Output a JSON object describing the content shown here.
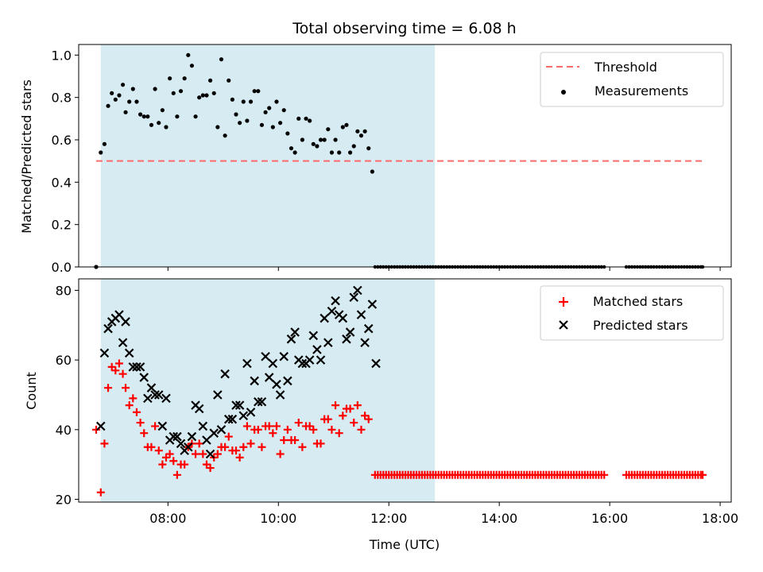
{
  "title": "Total observing time = 6.08 h",
  "colors": {
    "shade": "#add8e6",
    "threshold": "#ff6b6b",
    "measurement": "#000000",
    "matched": "#ff0000",
    "predicted": "#000000"
  },
  "chart_data": [
    {
      "type": "scatter",
      "ylabel": "Matched/Predicted stars",
      "xlim": [
        "06:23",
        "18:12"
      ],
      "ylim": [
        0,
        1.05
      ],
      "xticks": [
        "08:00",
        "10:00",
        "12:00",
        "14:00",
        "16:00",
        "18:00"
      ],
      "yticks": [
        "0.0",
        "0.2",
        "0.4",
        "0.6",
        "0.8",
        "1.0"
      ],
      "shaded_span": [
        "06:47",
        "12:50"
      ],
      "legend": "top-right",
      "legend_labels": {
        "threshold": "Threshold",
        "measurements": "Measurements"
      },
      "threshold": {
        "value": 0.5,
        "x": [
          "06:42",
          "17:41"
        ]
      },
      "measurements": [
        [
          "06:42",
          0.0
        ],
        [
          "06:47",
          0.54
        ],
        [
          "06:51",
          0.58
        ],
        [
          "06:55",
          0.76
        ],
        [
          "06:59",
          0.82
        ],
        [
          "07:03",
          0.79
        ],
        [
          "07:07",
          0.81
        ],
        [
          "07:11",
          0.86
        ],
        [
          "07:14",
          0.73
        ],
        [
          "07:18",
          0.78
        ],
        [
          "07:22",
          0.84
        ],
        [
          "07:26",
          0.78
        ],
        [
          "07:30",
          0.72
        ],
        [
          "07:34",
          0.71
        ],
        [
          "07:38",
          0.71
        ],
        [
          "07:42",
          0.67
        ],
        [
          "07:46",
          0.84
        ],
        [
          "07:50",
          0.68
        ],
        [
          "07:54",
          0.74
        ],
        [
          "07:58",
          0.66
        ],
        [
          "08:02",
          0.89
        ],
        [
          "08:06",
          0.82
        ],
        [
          "08:10",
          0.71
        ],
        [
          "08:14",
          0.83
        ],
        [
          "08:18",
          0.89
        ],
        [
          "08:22",
          1.0
        ],
        [
          "08:26",
          0.95
        ],
        [
          "08:30",
          0.71
        ],
        [
          "08:34",
          0.8
        ],
        [
          "08:38",
          0.81
        ],
        [
          "08:42",
          0.81
        ],
        [
          "08:46",
          0.88
        ],
        [
          "08:50",
          0.82
        ],
        [
          "08:54",
          0.66
        ],
        [
          "08:58",
          0.98
        ],
        [
          "09:02",
          0.62
        ],
        [
          "09:06",
          0.88
        ],
        [
          "09:10",
          0.79
        ],
        [
          "09:14",
          0.72
        ],
        [
          "09:18",
          0.68
        ],
        [
          "09:22",
          0.78
        ],
        [
          "09:26",
          0.69
        ],
        [
          "09:30",
          0.78
        ],
        [
          "09:34",
          0.83
        ],
        [
          "09:38",
          0.83
        ],
        [
          "09:42",
          0.67
        ],
        [
          "09:46",
          0.73
        ],
        [
          "09:50",
          0.75
        ],
        [
          "09:54",
          0.66
        ],
        [
          "09:58",
          0.78
        ],
        [
          "10:02",
          0.68
        ],
        [
          "10:06",
          0.74
        ],
        [
          "10:10",
          0.63
        ],
        [
          "10:14",
          0.56
        ],
        [
          "10:18",
          0.54
        ],
        [
          "10:22",
          0.7
        ],
        [
          "10:26",
          0.6
        ],
        [
          "10:30",
          0.7
        ],
        [
          "10:34",
          0.69
        ],
        [
          "10:38",
          0.58
        ],
        [
          "10:42",
          0.57
        ],
        [
          "10:46",
          0.6
        ],
        [
          "10:50",
          0.6
        ],
        [
          "10:54",
          0.65
        ],
        [
          "10:58",
          0.54
        ],
        [
          "11:02",
          0.6
        ],
        [
          "11:06",
          0.54
        ],
        [
          "11:10",
          0.66
        ],
        [
          "11:14",
          0.67
        ],
        [
          "11:18",
          0.54
        ],
        [
          "11:22",
          0.57
        ],
        [
          "11:26",
          0.64
        ],
        [
          "11:30",
          0.62
        ],
        [
          "11:34",
          0.64
        ],
        [
          "11:38",
          0.56
        ],
        [
          "11:42",
          0.45
        ]
      ],
      "measurements_tail": {
        "value": 0.0,
        "x": [
          "11:45",
          "11:48",
          "11:51",
          "11:54",
          "11:57",
          "12:00",
          "12:03",
          "12:06",
          "12:09",
          "12:12",
          "12:15",
          "12:18",
          "12:21",
          "12:24",
          "12:27",
          "12:30",
          "12:33",
          "12:36",
          "12:39",
          "12:42",
          "12:45",
          "12:48",
          "12:51",
          "12:54",
          "12:57",
          "13:00",
          "13:03",
          "13:06",
          "13:09",
          "13:12",
          "13:15",
          "13:18",
          "13:21",
          "13:24",
          "13:27",
          "13:30",
          "13:33",
          "13:36",
          "13:39",
          "13:42",
          "13:45",
          "13:48",
          "13:51",
          "13:54",
          "13:57",
          "14:00",
          "14:03",
          "14:06",
          "14:09",
          "14:12",
          "14:15",
          "14:18",
          "14:21",
          "14:24",
          "14:27",
          "14:30",
          "14:33",
          "14:36",
          "14:39",
          "14:42",
          "14:45",
          "14:48",
          "14:51",
          "14:54",
          "14:57",
          "15:00",
          "15:03",
          "15:06",
          "15:09",
          "15:12",
          "15:15",
          "15:18",
          "15:21",
          "15:24",
          "15:27",
          "15:30",
          "15:33",
          "15:36",
          "15:39",
          "15:42",
          "15:45",
          "15:48",
          "15:51",
          "15:54",
          "16:18",
          "16:21",
          "16:24",
          "16:27",
          "16:30",
          "16:33",
          "16:36",
          "16:39",
          "16:42",
          "16:45",
          "16:48",
          "16:51",
          "16:54",
          "16:57",
          "17:00",
          "17:03",
          "17:06",
          "17:09",
          "17:12",
          "17:15",
          "17:18",
          "17:21",
          "17:24",
          "17:27",
          "17:30",
          "17:33",
          "17:36",
          "17:39",
          "17:41"
        ]
      }
    },
    {
      "type": "scatter",
      "xlabel": "Time (UTC)",
      "ylabel": "Count",
      "xlim": [
        "06:23",
        "18:12"
      ],
      "ylim": [
        19.2,
        83.3
      ],
      "xticks": [
        "08:00",
        "10:00",
        "12:00",
        "14:00",
        "16:00",
        "18:00"
      ],
      "yticks": [
        "20",
        "40",
        "60",
        "80"
      ],
      "shaded_span": [
        "06:47",
        "12:50"
      ],
      "legend": "top-right",
      "legend_labels": {
        "matched": "Matched stars",
        "predicted": "Predicted stars"
      },
      "predicted": [
        [
          "06:47",
          41
        ],
        [
          "06:51",
          62
        ],
        [
          "06:55",
          69
        ],
        [
          "06:59",
          71
        ],
        [
          "07:03",
          72
        ],
        [
          "07:07",
          73
        ],
        [
          "07:11",
          65
        ],
        [
          "07:14",
          71
        ],
        [
          "07:18",
          62
        ],
        [
          "07:22",
          58
        ],
        [
          "07:26",
          58
        ],
        [
          "07:30",
          58
        ],
        [
          "07:34",
          55
        ],
        [
          "07:38",
          49
        ],
        [
          "07:42",
          52
        ],
        [
          "07:46",
          50
        ],
        [
          "07:50",
          50
        ],
        [
          "07:54",
          41
        ],
        [
          "07:58",
          49
        ],
        [
          "08:02",
          37
        ],
        [
          "08:06",
          38
        ],
        [
          "08:10",
          38
        ],
        [
          "08:14",
          36
        ],
        [
          "08:18",
          34
        ],
        [
          "08:22",
          35
        ],
        [
          "08:26",
          38
        ],
        [
          "08:30",
          47
        ],
        [
          "08:34",
          46
        ],
        [
          "08:38",
          41
        ],
        [
          "08:42",
          37
        ],
        [
          "08:46",
          33
        ],
        [
          "08:50",
          39
        ],
        [
          "08:54",
          50
        ],
        [
          "08:58",
          40
        ],
        [
          "09:02",
          56
        ],
        [
          "09:06",
          43
        ],
        [
          "09:10",
          43
        ],
        [
          "09:14",
          47
        ],
        [
          "09:18",
          47
        ],
        [
          "09:22",
          44
        ],
        [
          "09:26",
          59
        ],
        [
          "09:30",
          45
        ],
        [
          "09:34",
          54
        ],
        [
          "09:38",
          48
        ],
        [
          "09:42",
          48
        ],
        [
          "09:46",
          61
        ],
        [
          "09:50",
          55
        ],
        [
          "09:54",
          59
        ],
        [
          "09:58",
          53
        ],
        [
          "10:02",
          50
        ],
        [
          "10:06",
          61
        ],
        [
          "10:10",
          54
        ],
        [
          "10:14",
          66
        ],
        [
          "10:18",
          68
        ],
        [
          "10:22",
          60
        ],
        [
          "10:26",
          59
        ],
        [
          "10:30",
          59
        ],
        [
          "10:34",
          60
        ],
        [
          "10:38",
          67
        ],
        [
          "10:42",
          63
        ],
        [
          "10:46",
          60
        ],
        [
          "10:50",
          72
        ],
        [
          "10:54",
          65
        ],
        [
          "10:58",
          74
        ],
        [
          "11:02",
          77
        ],
        [
          "11:06",
          73
        ],
        [
          "11:10",
          72
        ],
        [
          "11:14",
          66
        ],
        [
          "11:18",
          68
        ],
        [
          "11:22",
          78
        ],
        [
          "11:26",
          80
        ],
        [
          "11:30",
          73
        ],
        [
          "11:34",
          65
        ],
        [
          "11:38",
          69
        ],
        [
          "11:42",
          76
        ],
        [
          "11:46",
          59
        ]
      ],
      "matched": [
        [
          "06:42",
          40
        ],
        [
          "06:47",
          22
        ],
        [
          "06:51",
          36
        ],
        [
          "06:55",
          52
        ],
        [
          "06:59",
          58
        ],
        [
          "07:03",
          57
        ],
        [
          "07:07",
          59
        ],
        [
          "07:11",
          56
        ],
        [
          "07:14",
          52
        ],
        [
          "07:18",
          47
        ],
        [
          "07:22",
          49
        ],
        [
          "07:26",
          45
        ],
        [
          "07:30",
          42
        ],
        [
          "07:34",
          39
        ],
        [
          "07:38",
          35
        ],
        [
          "07:42",
          35
        ],
        [
          "07:46",
          41
        ],
        [
          "07:50",
          34
        ],
        [
          "07:54",
          30
        ],
        [
          "07:58",
          32
        ],
        [
          "08:02",
          33
        ],
        [
          "08:06",
          31
        ],
        [
          "08:10",
          27
        ],
        [
          "08:14",
          30
        ],
        [
          "08:18",
          30
        ],
        [
          "08:22",
          35
        ],
        [
          "08:26",
          36
        ],
        [
          "08:30",
          33
        ],
        [
          "08:34",
          36
        ],
        [
          "08:38",
          33
        ],
        [
          "08:42",
          30
        ],
        [
          "08:46",
          29
        ],
        [
          "08:50",
          32
        ],
        [
          "08:54",
          33
        ],
        [
          "08:58",
          35
        ],
        [
          "09:02",
          35
        ],
        [
          "09:06",
          38
        ],
        [
          "09:10",
          34
        ],
        [
          "09:14",
          34
        ],
        [
          "09:18",
          32
        ],
        [
          "09:22",
          35
        ],
        [
          "09:26",
          41
        ],
        [
          "09:30",
          36
        ],
        [
          "09:34",
          40
        ],
        [
          "09:38",
          40
        ],
        [
          "09:42",
          35
        ],
        [
          "09:46",
          41
        ],
        [
          "09:50",
          41
        ],
        [
          "09:54",
          39
        ],
        [
          "09:58",
          41
        ],
        [
          "10:02",
          33
        ],
        [
          "10:06",
          37
        ],
        [
          "10:10",
          40
        ],
        [
          "10:14",
          37
        ],
        [
          "10:18",
          37
        ],
        [
          "10:22",
          42
        ],
        [
          "10:26",
          35
        ],
        [
          "10:30",
          41
        ],
        [
          "10:34",
          41
        ],
        [
          "10:38",
          40
        ],
        [
          "10:42",
          36
        ],
        [
          "10:46",
          36
        ],
        [
          "10:50",
          43
        ],
        [
          "10:54",
          43
        ],
        [
          "10:58",
          40
        ],
        [
          "11:02",
          47
        ],
        [
          "11:06",
          39
        ],
        [
          "11:10",
          44
        ],
        [
          "11:14",
          46
        ],
        [
          "11:18",
          46
        ],
        [
          "11:22",
          42
        ],
        [
          "11:26",
          47
        ],
        [
          "11:30",
          40
        ],
        [
          "11:34",
          44
        ],
        [
          "11:38",
          43
        ]
      ],
      "matched_tail": {
        "value": 27,
        "x": [
          "11:45",
          "11:48",
          "11:51",
          "11:54",
          "11:57",
          "12:00",
          "12:03",
          "12:06",
          "12:09",
          "12:12",
          "12:15",
          "12:18",
          "12:21",
          "12:24",
          "12:27",
          "12:30",
          "12:33",
          "12:36",
          "12:39",
          "12:42",
          "12:45",
          "12:48",
          "12:51",
          "12:54",
          "12:57",
          "13:00",
          "13:03",
          "13:06",
          "13:09",
          "13:12",
          "13:15",
          "13:18",
          "13:21",
          "13:24",
          "13:27",
          "13:30",
          "13:33",
          "13:36",
          "13:39",
          "13:42",
          "13:45",
          "13:48",
          "13:51",
          "13:54",
          "13:57",
          "14:00",
          "14:03",
          "14:06",
          "14:09",
          "14:12",
          "14:15",
          "14:18",
          "14:21",
          "14:24",
          "14:27",
          "14:30",
          "14:33",
          "14:36",
          "14:39",
          "14:42",
          "14:45",
          "14:48",
          "14:51",
          "14:54",
          "14:57",
          "15:00",
          "15:03",
          "15:06",
          "15:09",
          "15:12",
          "15:15",
          "15:18",
          "15:21",
          "15:24",
          "15:27",
          "15:30",
          "15:33",
          "15:36",
          "15:39",
          "15:42",
          "15:45",
          "15:48",
          "15:51",
          "15:54",
          "16:18",
          "16:21",
          "16:24",
          "16:27",
          "16:30",
          "16:33",
          "16:36",
          "16:39",
          "16:42",
          "16:45",
          "16:48",
          "16:51",
          "16:54",
          "16:57",
          "17:00",
          "17:03",
          "17:06",
          "17:09",
          "17:12",
          "17:15",
          "17:18",
          "17:21",
          "17:24",
          "17:27",
          "17:30",
          "17:33",
          "17:36",
          "17:39",
          "17:41"
        ]
      }
    }
  ]
}
